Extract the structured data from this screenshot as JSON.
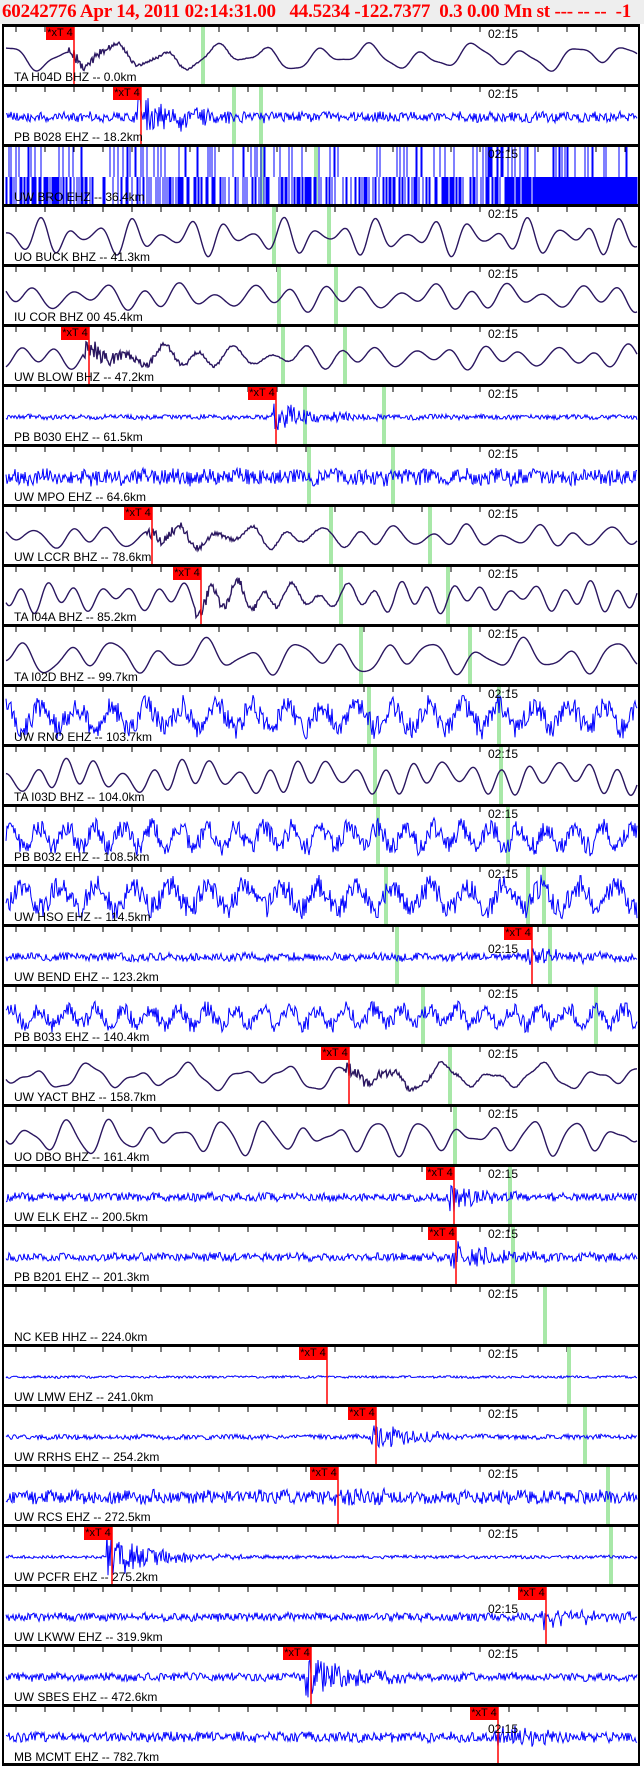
{
  "header": {
    "title": "60242776 Apr 14, 2011 02:14:31.00   44.5234 -122.7377  0.3 0.00 Mn st --- -- --  -1",
    "color": "#ff0000"
  },
  "time_label": "02:15",
  "pick_label": "*xT 4",
  "colors": {
    "broadband_trace": "#2a1660",
    "short_period_trace": "#0000ff",
    "pick": "#ff0000",
    "predicted_arrival": "#a8e8a8"
  },
  "stations": [
    {
      "label": "TA H04D BHZ -- 0.0km",
      "picked": true
    },
    {
      "label": "PB B028 EHZ -- 18.2km",
      "picked": true
    },
    {
      "label": "UW BRO EHZ -- 36.4km",
      "picked": false
    },
    {
      "label": "UO BUCK BHZ -- 41.3km",
      "picked": false
    },
    {
      "label": "IU COR BHZ 00 45.4km",
      "picked": false
    },
    {
      "label": "UW BLOW BHZ -- 47.2km",
      "picked": true
    },
    {
      "label": "PB B030 EHZ -- 61.5km",
      "picked": true
    },
    {
      "label": "UW MPO EHZ -- 64.6km",
      "picked": false
    },
    {
      "label": "UW LCCR BHZ -- 78.6km",
      "picked": true
    },
    {
      "label": "TA I04A BHZ -- 85.2km",
      "picked": true
    },
    {
      "label": "TA I02D BHZ -- 99.7km",
      "picked": false
    },
    {
      "label": "UW RNO EHZ -- 103.7km",
      "picked": false
    },
    {
      "label": "TA I03D BHZ -- 104.0km",
      "picked": false
    },
    {
      "label": "PB B032 EHZ -- 108.5km",
      "picked": false
    },
    {
      "label": "UW HSO EHZ -- 114.5km",
      "picked": false
    },
    {
      "label": "UW BEND EHZ -- 123.2km",
      "picked": true
    },
    {
      "label": "PB B033 EHZ -- 140.4km",
      "picked": false
    },
    {
      "label": "UW YACT BHZ -- 158.7km",
      "picked": true
    },
    {
      "label": "UO DBO BHZ -- 161.4km",
      "picked": false
    },
    {
      "label": "UW ELK EHZ -- 200.5km",
      "picked": true
    },
    {
      "label": "PB B201 EHZ -- 201.3km",
      "picked": true
    },
    {
      "label": "NC KEB HHZ -- 224.0km",
      "picked": false
    },
    {
      "label": "UW LMW EHZ -- 241.0km",
      "picked": true
    },
    {
      "label": "UW RRHS EHZ -- 254.2km",
      "picked": true
    },
    {
      "label": "UW RCS EHZ -- 272.5km",
      "picked": true
    },
    {
      "label": "UW PCFR EHZ -- 275.2km",
      "picked": true
    },
    {
      "label": "UW LKWW EHZ -- 319.9km",
      "picked": true
    },
    {
      "label": "UW SBES EHZ -- 472.6km",
      "picked": true
    },
    {
      "label": "MB MCMT EHZ -- 782.7km",
      "picked": true
    }
  ]
}
